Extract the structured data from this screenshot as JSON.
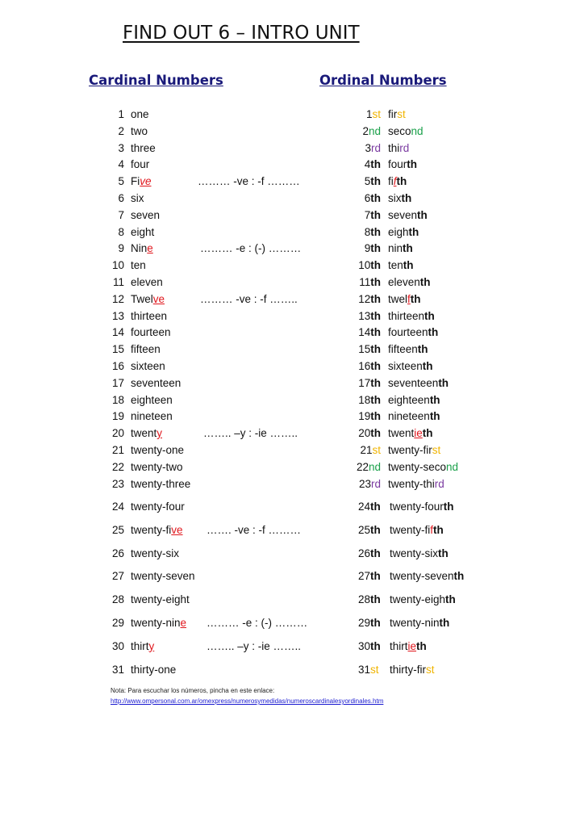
{
  "title": "FIND OUT 6 – INTRO UNIT",
  "headers": {
    "cardinal": "Cardinal Numbers",
    "ordinal": "Ordinal Numbers"
  },
  "colors": {
    "heading": "#1a1a7a",
    "st": "#f0b400",
    "nd": "#1aa04a",
    "rd": "#7a3aa0",
    "change": "#e0161c",
    "link": "#1a1ad0"
  },
  "rows": [
    {
      "n": "1",
      "c": [
        [
          "one",
          ""
        ]
      ],
      "note": "",
      "on": "1",
      "os": [
        "st",
        "y"
      ],
      "o": [
        [
          "fir",
          ""
        ],
        [
          "st",
          "y"
        ]
      ]
    },
    {
      "n": "2",
      "c": [
        [
          "two",
          ""
        ]
      ],
      "note": "",
      "on": "2",
      "os": [
        "nd",
        "g"
      ],
      "o": [
        [
          "seco",
          ""
        ],
        [
          "nd",
          "g"
        ]
      ]
    },
    {
      "n": "3",
      "c": [
        [
          "three",
          ""
        ]
      ],
      "note": "",
      "on": "3",
      "os": [
        "rd",
        "p"
      ],
      "o": [
        [
          "thi",
          ""
        ],
        [
          "rd",
          "p"
        ]
      ]
    },
    {
      "n": "4",
      "c": [
        [
          "four",
          ""
        ]
      ],
      "note": "",
      "on": "4",
      "os": [
        "th",
        "b"
      ],
      "o": [
        [
          "four",
          ""
        ],
        [
          "th",
          "b"
        ]
      ]
    },
    {
      "n": "5",
      "c": [
        [
          "Fi",
          ""
        ],
        [
          "ve",
          "ri"
        ]
      ],
      "note": "……… -ve : -f ………",
      "on": "5",
      "os": [
        "th",
        "b"
      ],
      "o": [
        [
          "fi",
          ""
        ],
        [
          "f",
          "ri"
        ],
        [
          "th",
          "b"
        ]
      ]
    },
    {
      "n": "6",
      "c": [
        [
          "six",
          ""
        ]
      ],
      "note": "",
      "on": "6",
      "os": [
        "th",
        "b"
      ],
      "o": [
        [
          "six",
          ""
        ],
        [
          "th",
          "b"
        ]
      ]
    },
    {
      "n": "7",
      "c": [
        [
          "seven",
          ""
        ]
      ],
      "note": "",
      "on": "7",
      "os": [
        "th",
        "b"
      ],
      "o": [
        [
          "seven",
          ""
        ],
        [
          "th",
          "b"
        ]
      ]
    },
    {
      "n": "8",
      "c": [
        [
          "eight",
          ""
        ]
      ],
      "note": "",
      "on": "8",
      "os": [
        "th",
        "b"
      ],
      "o": [
        [
          "eigh",
          ""
        ],
        [
          "th",
          "b"
        ]
      ]
    },
    {
      "n": "9",
      "c": [
        [
          "Nin",
          ""
        ],
        [
          "e",
          "r"
        ]
      ],
      "note": "……… -e : (-) ………",
      "on": "9",
      "os": [
        "th",
        "b"
      ],
      "o": [
        [
          "nin",
          ""
        ],
        [
          "th",
          "b"
        ]
      ]
    },
    {
      "n": "10",
      "c": [
        [
          "ten",
          ""
        ]
      ],
      "note": "",
      "on": "10",
      "os": [
        "th",
        "b"
      ],
      "o": [
        [
          "ten",
          ""
        ],
        [
          "th",
          "b"
        ]
      ]
    },
    {
      "n": "11",
      "c": [
        [
          "eleven",
          ""
        ]
      ],
      "note": "",
      "on": "11",
      "os": [
        "th",
        "b"
      ],
      "o": [
        [
          "eleven",
          ""
        ],
        [
          "th",
          "b"
        ]
      ]
    },
    {
      "n": "12",
      "c": [
        [
          "Twel",
          ""
        ],
        [
          "ve",
          "r"
        ]
      ],
      "note": "……… -ve : -f ……..",
      "on": "12",
      "os": [
        "th",
        "b"
      ],
      "o": [
        [
          "twel",
          ""
        ],
        [
          "f",
          "r"
        ],
        [
          "th",
          "b"
        ]
      ]
    },
    {
      "n": "13",
      "c": [
        [
          "thirteen",
          ""
        ]
      ],
      "note": "",
      "on": "13",
      "os": [
        "th",
        "b"
      ],
      "o": [
        [
          "thirteen",
          ""
        ],
        [
          "th",
          "b"
        ]
      ]
    },
    {
      "n": "14",
      "c": [
        [
          "fourteen",
          ""
        ]
      ],
      "note": "",
      "on": "14",
      "os": [
        "th",
        "b"
      ],
      "o": [
        [
          "fourteen",
          ""
        ],
        [
          "th",
          "b"
        ]
      ]
    },
    {
      "n": "15",
      "c": [
        [
          "fifteen",
          ""
        ]
      ],
      "note": "",
      "on": "15",
      "os": [
        "th",
        "b"
      ],
      "o": [
        [
          "fifteen",
          ""
        ],
        [
          "th",
          "b"
        ]
      ]
    },
    {
      "n": "16",
      "c": [
        [
          "sixteen",
          ""
        ]
      ],
      "note": "",
      "on": "16",
      "os": [
        "th",
        "b"
      ],
      "o": [
        [
          "sixteen",
          ""
        ],
        [
          "th",
          "b"
        ]
      ]
    },
    {
      "n": "17",
      "c": [
        [
          "seventeen",
          ""
        ]
      ],
      "note": "",
      "on": "17",
      "os": [
        "th",
        "b"
      ],
      "o": [
        [
          "seventeen",
          ""
        ],
        [
          "th",
          "b"
        ]
      ]
    },
    {
      "n": "18",
      "c": [
        [
          "eighteen",
          ""
        ]
      ],
      "note": "",
      "on": "18",
      "os": [
        "th",
        "b"
      ],
      "o": [
        [
          "eighteen",
          ""
        ],
        [
          "th",
          "b"
        ]
      ]
    },
    {
      "n": "19",
      "c": [
        [
          "nineteen",
          ""
        ]
      ],
      "note": "",
      "on": "19",
      "os": [
        "th",
        "b"
      ],
      "o": [
        [
          "nineteen",
          ""
        ],
        [
          "th",
          "b"
        ]
      ]
    },
    {
      "n": "20",
      "c": [
        [
          "twent",
          ""
        ],
        [
          "y",
          "r"
        ]
      ],
      "note": "…….. –y : -ie ……..",
      "on": "20",
      "os": [
        "th",
        "b"
      ],
      "o": [
        [
          "twent",
          ""
        ],
        [
          "ie",
          "r"
        ],
        [
          "th",
          "b"
        ]
      ]
    },
    {
      "n": "21",
      "c": [
        [
          "twenty-one",
          ""
        ]
      ],
      "note": "",
      "on": "21",
      "os": [
        "st",
        "y"
      ],
      "o": [
        [
          "twenty-fir",
          ""
        ],
        [
          "st",
          "y"
        ]
      ]
    },
    {
      "n": "22",
      "c": [
        [
          "twenty-two",
          ""
        ]
      ],
      "note": "",
      "on": "22",
      "os": [
        "nd",
        "g"
      ],
      "o": [
        [
          "twenty-seco",
          ""
        ],
        [
          "nd",
          "g"
        ]
      ]
    },
    {
      "n": "23",
      "c": [
        [
          "twenty-three",
          ""
        ]
      ],
      "note": "",
      "on": "23",
      "os": [
        "rd",
        "p"
      ],
      "o": [
        [
          "twenty-thi",
          ""
        ],
        [
          "rd",
          "p"
        ]
      ]
    },
    {
      "n": "24",
      "c": [
        [
          "twenty-four",
          ""
        ]
      ],
      "note": "",
      "on": "24",
      "os": [
        "th",
        "b"
      ],
      "o": [
        [
          "twenty-four",
          ""
        ],
        [
          "th",
          "b"
        ]
      ]
    },
    {
      "n": "25",
      "c": [
        [
          "twenty-fi",
          ""
        ],
        [
          "ve",
          "r"
        ]
      ],
      "note": "……. -ve : -f ………",
      "on": "25",
      "os": [
        "th",
        "b"
      ],
      "o": [
        [
          "twenty-fi",
          ""
        ],
        [
          "f",
          "rn"
        ],
        [
          "th",
          "b"
        ]
      ]
    },
    {
      "n": "26",
      "c": [
        [
          "twenty-six",
          ""
        ]
      ],
      "note": "",
      "on": "26",
      "os": [
        "th",
        "b"
      ],
      "o": [
        [
          "twenty-six",
          ""
        ],
        [
          "th",
          "b"
        ]
      ]
    },
    {
      "n": "27",
      "c": [
        [
          "twenty-seven",
          ""
        ]
      ],
      "note": "",
      "on": "27",
      "os": [
        "th",
        "b"
      ],
      "o": [
        [
          "twenty-seven",
          ""
        ],
        [
          "th",
          "b"
        ]
      ]
    },
    {
      "n": "28",
      "c": [
        [
          "twenty-eight",
          ""
        ]
      ],
      "note": "",
      "on": "28",
      "os": [
        "th",
        "b"
      ],
      "o": [
        [
          "twenty-eigh",
          ""
        ],
        [
          "th",
          "b"
        ]
      ]
    },
    {
      "n": "29",
      "c": [
        [
          "twenty-nin",
          ""
        ],
        [
          "e",
          "r"
        ]
      ],
      "note": "……… -e : (-) ………",
      "on": "29",
      "os": [
        "th",
        "b"
      ],
      "o": [
        [
          "twenty-nin",
          ""
        ],
        [
          "th",
          "b"
        ]
      ]
    },
    {
      "n": "30",
      "c": [
        [
          "thirt",
          ""
        ],
        [
          "y",
          "r"
        ]
      ],
      "note": "…….. –y : -ie ……..",
      "on": "30",
      "os": [
        "th",
        "b"
      ],
      "o": [
        [
          "thirt",
          ""
        ],
        [
          "ie",
          "r"
        ],
        [
          "th",
          "b"
        ]
      ]
    },
    {
      "n": "31",
      "c": [
        [
          "thirty-one",
          ""
        ]
      ],
      "note": "",
      "on": "31",
      "os": [
        "st",
        "y"
      ],
      "o": [
        [
          "thirty-fir",
          ""
        ],
        [
          "st",
          "y"
        ]
      ]
    }
  ],
  "footer": {
    "nota": "Nota: Para escuchar los números, pincha en este enlace:",
    "link": "http://www.ompersonal.com.ar/omexpress/numerosymedidas/numeroscardinalesyordinales.htm"
  }
}
